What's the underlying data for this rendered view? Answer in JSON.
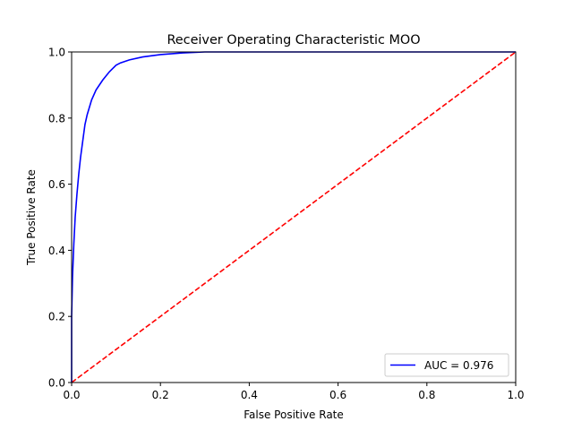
{
  "chart_data": {
    "type": "line",
    "title": "Receiver Operating Characteristic MOO",
    "xlabel": "False Positive Rate",
    "ylabel": "True Positive Rate",
    "xlim": [
      0.0,
      1.0
    ],
    "ylim": [
      0.0,
      1.0
    ],
    "xticks": [
      0.0,
      0.2,
      0.4,
      0.6,
      0.8,
      1.0
    ],
    "yticks": [
      0.0,
      0.2,
      0.4,
      0.6,
      0.8,
      1.0
    ],
    "xtick_labels": [
      "0.0",
      "0.2",
      "0.4",
      "0.6",
      "0.8",
      "1.0"
    ],
    "ytick_labels": [
      "0.0",
      "0.2",
      "0.4",
      "0.6",
      "0.8",
      "1.0"
    ],
    "grid": false,
    "legend": {
      "placement": "lower-right",
      "entries": [
        "AUC = 0.976"
      ]
    },
    "series": [
      {
        "name": "AUC = 0.976",
        "color": "#0000ff",
        "style": "solid",
        "x": [
          0.0,
          0.0,
          0.002,
          0.005,
          0.008,
          0.012,
          0.016,
          0.02,
          0.025,
          0.03,
          0.035,
          0.045,
          0.055,
          0.07,
          0.085,
          0.1,
          0.11,
          0.13,
          0.16,
          0.2,
          0.25,
          0.3,
          0.4,
          0.6,
          0.8,
          1.0
        ],
        "y": [
          0.0,
          0.2,
          0.32,
          0.42,
          0.5,
          0.57,
          0.63,
          0.68,
          0.73,
          0.78,
          0.81,
          0.855,
          0.885,
          0.915,
          0.94,
          0.96,
          0.967,
          0.976,
          0.985,
          0.992,
          0.997,
          1.0,
          1.0,
          1.0,
          1.0,
          1.0
        ]
      },
      {
        "color": "#ff0000",
        "style": "dashed",
        "x": [
          0.0,
          1.0
        ],
        "y": [
          0.0,
          1.0
        ]
      }
    ]
  }
}
